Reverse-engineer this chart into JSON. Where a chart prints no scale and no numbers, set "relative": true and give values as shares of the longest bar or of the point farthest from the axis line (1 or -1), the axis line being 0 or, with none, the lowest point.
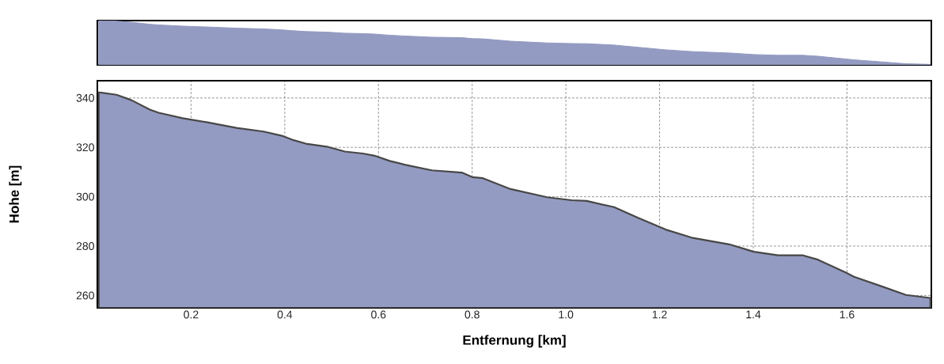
{
  "chart_data": [
    {
      "type": "area",
      "color": "#949bc2",
      "tick_labels": false,
      "relative": true,
      "xlim": [
        0,
        1.78
      ],
      "x": [
        0.003,
        0.041,
        0.073,
        0.112,
        0.131,
        0.182,
        0.233,
        0.297,
        0.355,
        0.394,
        0.419,
        0.445,
        0.49,
        0.528,
        0.567,
        0.592,
        0.624,
        0.656,
        0.714,
        0.778,
        0.801,
        0.823,
        0.882,
        0.96,
        1.012,
        1.044,
        1.103,
        1.155,
        1.213,
        1.271,
        1.349,
        1.401,
        1.453,
        1.505,
        1.538,
        1.596,
        1.615,
        1.674,
        1.726,
        1.778
      ],
      "values": [
        1,
        0.988,
        0.962,
        0.917,
        0.902,
        0.875,
        0.856,
        0.829,
        0.811,
        0.791,
        0.77,
        0.753,
        0.739,
        0.715,
        0.706,
        0.695,
        0.67,
        0.652,
        0.625,
        0.615,
        0.592,
        0.587,
        0.535,
        0.496,
        0.482,
        0.478,
        0.448,
        0.396,
        0.34,
        0.3,
        0.269,
        0.234,
        0.217,
        0.217,
        0.196,
        0.135,
        0.114,
        0.068,
        0.026,
        0.012
      ]
    },
    {
      "type": "area",
      "color": "#949bc2",
      "grid": true,
      "xlabel": "Entfernung [km]",
      "ylabel": "Hohe [m]",
      "xlim": [
        0,
        1.78
      ],
      "ylim": [
        255,
        347
      ],
      "xticks": [
        0.2,
        0.4,
        0.6,
        0.8,
        {
          "value": 1.0,
          "label": "1.0"
        },
        1.2,
        1.4,
        1.6
      ],
      "yticks": [
        260,
        280,
        300,
        320,
        340
      ],
      "x": [
        0.003,
        0.041,
        0.073,
        0.112,
        0.131,
        0.182,
        0.233,
        0.297,
        0.355,
        0.394,
        0.419,
        0.445,
        0.49,
        0.528,
        0.567,
        0.592,
        0.624,
        0.656,
        0.714,
        0.778,
        0.801,
        0.823,
        0.882,
        0.96,
        1.012,
        1.044,
        1.103,
        1.155,
        1.213,
        1.271,
        1.349,
        1.401,
        1.453,
        1.505,
        1.538,
        1.596,
        1.615,
        1.674,
        1.726,
        1.778
      ],
      "values": [
        342.3,
        341.3,
        339.1,
        335.3,
        334,
        331.8,
        330.2,
        327.9,
        326.4,
        324.7,
        322.9,
        321.5,
        320.3,
        318.3,
        317.5,
        316.6,
        314.5,
        313,
        310.7,
        309.8,
        307.9,
        307.5,
        303.1,
        299.8,
        298.6,
        298.3,
        295.8,
        291.4,
        286.7,
        283.3,
        280.7,
        277.7,
        276.3,
        276.3,
        274.5,
        269.4,
        267.6,
        263.7,
        260.2,
        259
      ]
    }
  ]
}
